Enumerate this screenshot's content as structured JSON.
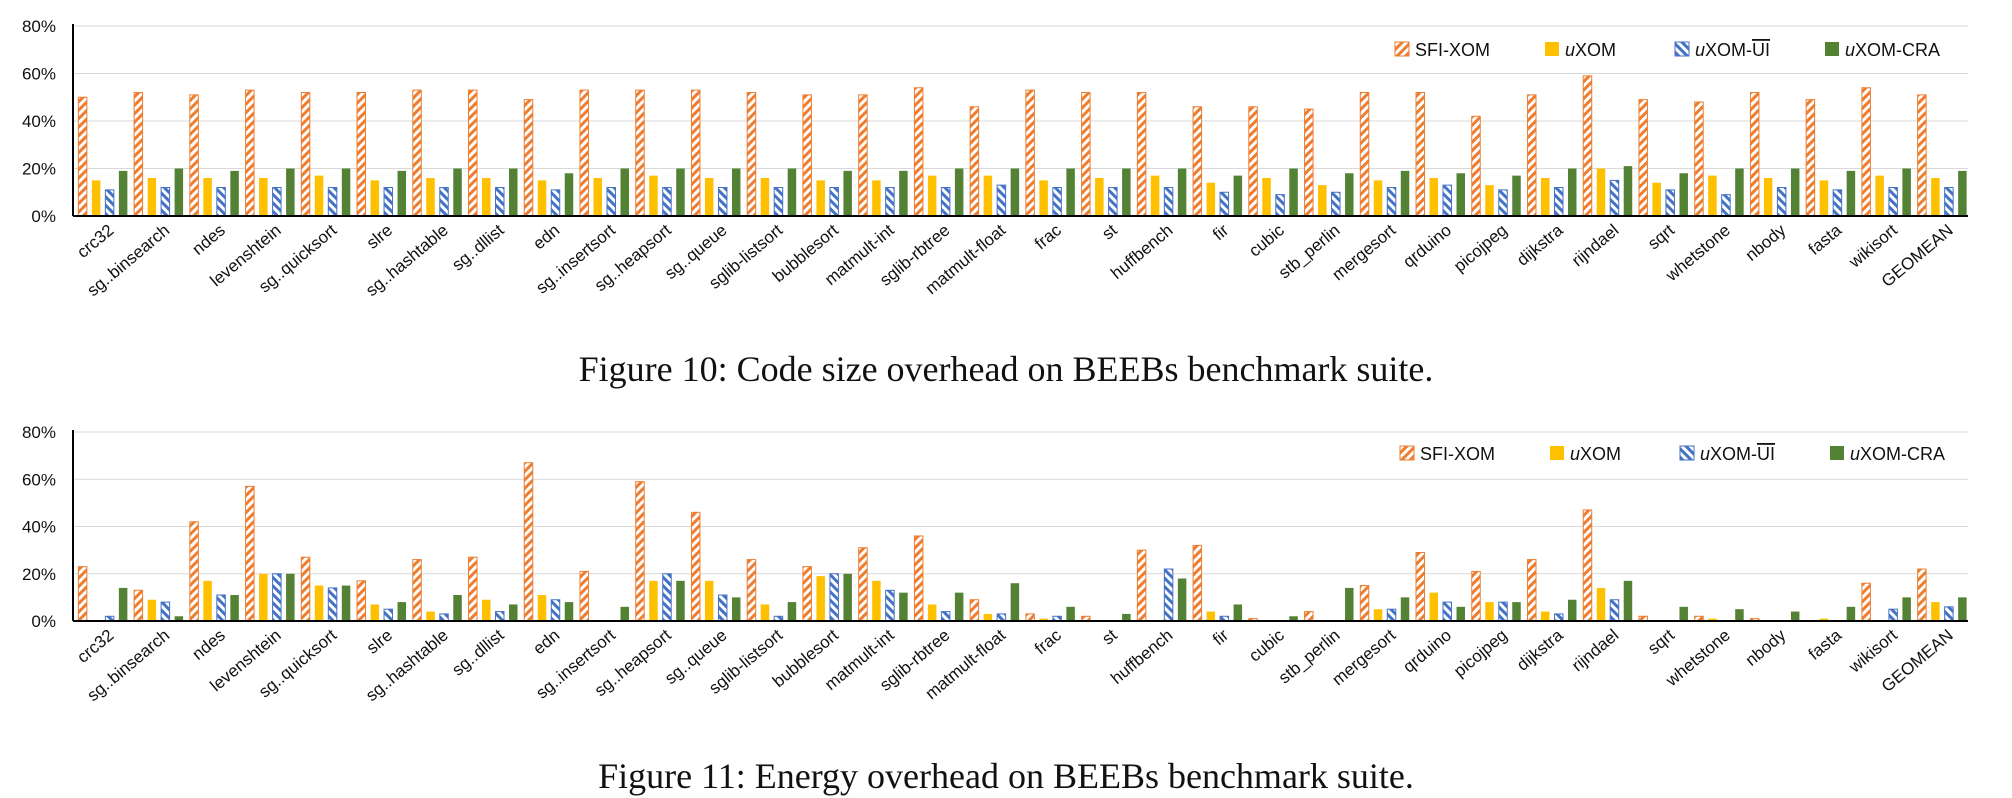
{
  "chart_data": [
    {
      "type": "bar",
      "ylim": [
        0,
        80
      ],
      "yticks": [
        "0%",
        "20%",
        "40%",
        "60%",
        "80%"
      ],
      "legend_position": "top-right",
      "categories": [
        "crc32",
        "sg..binsearch",
        "ndes",
        "levenshtein",
        "sg..quicksort",
        "slre",
        "sg..hashtable",
        "sg..dllist",
        "edn",
        "sg..insertsort",
        "sg..heapsort",
        "sg..queue",
        "sglib-listsort",
        "bubblesort",
        "matmult-int",
        "sglib-rbtree",
        "matmult-float",
        "frac",
        "st",
        "huffbench",
        "fir",
        "cubic",
        "stb_perlin",
        "mergesort",
        "qrduino",
        "picojpeg",
        "dijkstra",
        "rijndael",
        "sqrt",
        "whetstone",
        "nbody",
        "fasta",
        "wikisort",
        "GEOMEAN"
      ],
      "series": [
        {
          "name": "SFI-XOM",
          "values": [
            50,
            52,
            51,
            53,
            52,
            52,
            53,
            53,
            49,
            53,
            53,
            53,
            52,
            51,
            51,
            54,
            46,
            53,
            52,
            52,
            46,
            46,
            45,
            52,
            52,
            42,
            51,
            59,
            49,
            48,
            52,
            49,
            54,
            51
          ]
        },
        {
          "name": "uXOM",
          "values": [
            15,
            16,
            16,
            16,
            17,
            15,
            16,
            16,
            15,
            16,
            17,
            16,
            16,
            15,
            15,
            17,
            17,
            15,
            16,
            17,
            14,
            16,
            13,
            15,
            16,
            13,
            16,
            20,
            14,
            17,
            16,
            15,
            17,
            16
          ]
        },
        {
          "name": "uXOM-UI",
          "values": [
            11,
            12,
            12,
            12,
            12,
            12,
            12,
            12,
            11,
            12,
            12,
            12,
            12,
            12,
            12,
            12,
            13,
            12,
            12,
            12,
            10,
            9,
            10,
            12,
            13,
            11,
            12,
            15,
            11,
            9,
            12,
            11,
            12,
            12
          ]
        },
        {
          "name": "uXOM-CRA",
          "values": [
            19,
            20,
            19,
            20,
            20,
            19,
            20,
            20,
            18,
            20,
            20,
            20,
            20,
            19,
            19,
            20,
            20,
            20,
            20,
            20,
            17,
            20,
            18,
            19,
            18,
            17,
            20,
            21,
            18,
            20,
            20,
            19,
            20,
            19
          ]
        }
      ]
    },
    {
      "type": "bar",
      "ylim": [
        0,
        80
      ],
      "yticks": [
        "0%",
        "20%",
        "40%",
        "60%",
        "80%"
      ],
      "legend_position": "top-right",
      "categories": [
        "crc32",
        "sg..binsearch",
        "ndes",
        "levenshtein",
        "sg..quicksort",
        "slre",
        "sg..hashtable",
        "sg..dllist",
        "edn",
        "sg..insertsort",
        "sg..heapsort",
        "sg..queue",
        "sglib-listsort",
        "bubblesort",
        "matmult-int",
        "sglib-rbtree",
        "matmult-float",
        "frac",
        "st",
        "huffbench",
        "fir",
        "cubic",
        "stb_perlin",
        "mergesort",
        "qrduino",
        "picojpeg",
        "dijkstra",
        "rijndael",
        "sqrt",
        "whetstone",
        "nbody",
        "fasta",
        "wikisort",
        "GEOMEAN"
      ],
      "series": [
        {
          "name": "SFI-XOM",
          "values": [
            23,
            13,
            42,
            57,
            27,
            17,
            26,
            27,
            67,
            21,
            59,
            46,
            26,
            23,
            31,
            36,
            9,
            3,
            2,
            30,
            32,
            1,
            4,
            15,
            29,
            21,
            26,
            47,
            2,
            2,
            1,
            0,
            16,
            22
          ]
        },
        {
          "name": "uXOM",
          "values": [
            0,
            9,
            17,
            20,
            15,
            7,
            4,
            9,
            11,
            0,
            17,
            17,
            7,
            19,
            17,
            7,
            3,
            1,
            0,
            0,
            4,
            0,
            0,
            5,
            12,
            8,
            4,
            14,
            0,
            1,
            0,
            1,
            0,
            8
          ]
        },
        {
          "name": "uXOM-UI",
          "values": [
            2,
            8,
            11,
            20,
            14,
            5,
            3,
            4,
            9,
            0,
            20,
            11,
            2,
            20,
            13,
            4,
            3,
            2,
            0,
            22,
            2,
            0,
            0,
            5,
            8,
            8,
            3,
            9,
            0,
            0,
            0,
            0,
            5,
            6
          ]
        },
        {
          "name": "uXOM-CRA",
          "values": [
            14,
            2,
            11,
            20,
            15,
            8,
            11,
            7,
            8,
            6,
            17,
            10,
            8,
            20,
            12,
            12,
            16,
            6,
            3,
            18,
            7,
            2,
            14,
            10,
            6,
            8,
            9,
            17,
            6,
            5,
            4,
            6,
            10,
            10
          ]
        }
      ]
    }
  ],
  "figures": {
    "fig10_caption": "Figure 10: Code size overhead on BEEBs benchmark suite.",
    "fig11_caption": "Figure 11: Energy overhead on BEEBs benchmark suite."
  },
  "legend_labels": [
    {
      "prefix": "",
      "main": "SFI-XOM",
      "overline": ""
    },
    {
      "prefix": "u",
      "main": "XOM",
      "overline": ""
    },
    {
      "prefix": "u",
      "main": "XOM-",
      "overline": "UI"
    },
    {
      "prefix": "u",
      "main": "XOM-CRA",
      "overline": ""
    }
  ],
  "colors": {
    "sfi_xom": "#ED7D31",
    "uxom": "#FFC000",
    "uxom_ui": "#4472C4",
    "uxom_cra": "#548235",
    "grid": "#D9D9D9",
    "axis": "#000000"
  }
}
